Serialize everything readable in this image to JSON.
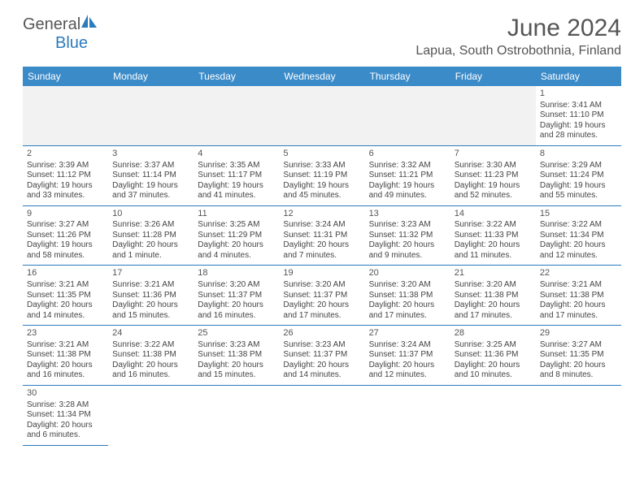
{
  "brand": {
    "name1": "General",
    "name2": "Blue",
    "color1": "#555555",
    "color2": "#2b7bbd"
  },
  "title": "June 2024",
  "location": "Lapua, South Ostrobothnia, Finland",
  "colors": {
    "header_bg": "#3b8bc9",
    "header_text": "#ffffff",
    "rule": "#2b7bbd",
    "empty_bg": "#f2f2f2",
    "text": "#444444"
  },
  "day_headers": [
    "Sunday",
    "Monday",
    "Tuesday",
    "Wednesday",
    "Thursday",
    "Friday",
    "Saturday"
  ],
  "weeks": [
    [
      null,
      null,
      null,
      null,
      null,
      null,
      {
        "n": "1",
        "sunrise": "Sunrise: 3:41 AM",
        "sunset": "Sunset: 11:10 PM",
        "daylight": "Daylight: 19 hours and 28 minutes."
      }
    ],
    [
      {
        "n": "2",
        "sunrise": "Sunrise: 3:39 AM",
        "sunset": "Sunset: 11:12 PM",
        "daylight": "Daylight: 19 hours and 33 minutes."
      },
      {
        "n": "3",
        "sunrise": "Sunrise: 3:37 AM",
        "sunset": "Sunset: 11:14 PM",
        "daylight": "Daylight: 19 hours and 37 minutes."
      },
      {
        "n": "4",
        "sunrise": "Sunrise: 3:35 AM",
        "sunset": "Sunset: 11:17 PM",
        "daylight": "Daylight: 19 hours and 41 minutes."
      },
      {
        "n": "5",
        "sunrise": "Sunrise: 3:33 AM",
        "sunset": "Sunset: 11:19 PM",
        "daylight": "Daylight: 19 hours and 45 minutes."
      },
      {
        "n": "6",
        "sunrise": "Sunrise: 3:32 AM",
        "sunset": "Sunset: 11:21 PM",
        "daylight": "Daylight: 19 hours and 49 minutes."
      },
      {
        "n": "7",
        "sunrise": "Sunrise: 3:30 AM",
        "sunset": "Sunset: 11:23 PM",
        "daylight": "Daylight: 19 hours and 52 minutes."
      },
      {
        "n": "8",
        "sunrise": "Sunrise: 3:29 AM",
        "sunset": "Sunset: 11:24 PM",
        "daylight": "Daylight: 19 hours and 55 minutes."
      }
    ],
    [
      {
        "n": "9",
        "sunrise": "Sunrise: 3:27 AM",
        "sunset": "Sunset: 11:26 PM",
        "daylight": "Daylight: 19 hours and 58 minutes."
      },
      {
        "n": "10",
        "sunrise": "Sunrise: 3:26 AM",
        "sunset": "Sunset: 11:28 PM",
        "daylight": "Daylight: 20 hours and 1 minute."
      },
      {
        "n": "11",
        "sunrise": "Sunrise: 3:25 AM",
        "sunset": "Sunset: 11:29 PM",
        "daylight": "Daylight: 20 hours and 4 minutes."
      },
      {
        "n": "12",
        "sunrise": "Sunrise: 3:24 AM",
        "sunset": "Sunset: 11:31 PM",
        "daylight": "Daylight: 20 hours and 7 minutes."
      },
      {
        "n": "13",
        "sunrise": "Sunrise: 3:23 AM",
        "sunset": "Sunset: 11:32 PM",
        "daylight": "Daylight: 20 hours and 9 minutes."
      },
      {
        "n": "14",
        "sunrise": "Sunrise: 3:22 AM",
        "sunset": "Sunset: 11:33 PM",
        "daylight": "Daylight: 20 hours and 11 minutes."
      },
      {
        "n": "15",
        "sunrise": "Sunrise: 3:22 AM",
        "sunset": "Sunset: 11:34 PM",
        "daylight": "Daylight: 20 hours and 12 minutes."
      }
    ],
    [
      {
        "n": "16",
        "sunrise": "Sunrise: 3:21 AM",
        "sunset": "Sunset: 11:35 PM",
        "daylight": "Daylight: 20 hours and 14 minutes."
      },
      {
        "n": "17",
        "sunrise": "Sunrise: 3:21 AM",
        "sunset": "Sunset: 11:36 PM",
        "daylight": "Daylight: 20 hours and 15 minutes."
      },
      {
        "n": "18",
        "sunrise": "Sunrise: 3:20 AM",
        "sunset": "Sunset: 11:37 PM",
        "daylight": "Daylight: 20 hours and 16 minutes."
      },
      {
        "n": "19",
        "sunrise": "Sunrise: 3:20 AM",
        "sunset": "Sunset: 11:37 PM",
        "daylight": "Daylight: 20 hours and 17 minutes."
      },
      {
        "n": "20",
        "sunrise": "Sunrise: 3:20 AM",
        "sunset": "Sunset: 11:38 PM",
        "daylight": "Daylight: 20 hours and 17 minutes."
      },
      {
        "n": "21",
        "sunrise": "Sunrise: 3:20 AM",
        "sunset": "Sunset: 11:38 PM",
        "daylight": "Daylight: 20 hours and 17 minutes."
      },
      {
        "n": "22",
        "sunrise": "Sunrise: 3:21 AM",
        "sunset": "Sunset: 11:38 PM",
        "daylight": "Daylight: 20 hours and 17 minutes."
      }
    ],
    [
      {
        "n": "23",
        "sunrise": "Sunrise: 3:21 AM",
        "sunset": "Sunset: 11:38 PM",
        "daylight": "Daylight: 20 hours and 16 minutes."
      },
      {
        "n": "24",
        "sunrise": "Sunrise: 3:22 AM",
        "sunset": "Sunset: 11:38 PM",
        "daylight": "Daylight: 20 hours and 16 minutes."
      },
      {
        "n": "25",
        "sunrise": "Sunrise: 3:23 AM",
        "sunset": "Sunset: 11:38 PM",
        "daylight": "Daylight: 20 hours and 15 minutes."
      },
      {
        "n": "26",
        "sunrise": "Sunrise: 3:23 AM",
        "sunset": "Sunset: 11:37 PM",
        "daylight": "Daylight: 20 hours and 14 minutes."
      },
      {
        "n": "27",
        "sunrise": "Sunrise: 3:24 AM",
        "sunset": "Sunset: 11:37 PM",
        "daylight": "Daylight: 20 hours and 12 minutes."
      },
      {
        "n": "28",
        "sunrise": "Sunrise: 3:25 AM",
        "sunset": "Sunset: 11:36 PM",
        "daylight": "Daylight: 20 hours and 10 minutes."
      },
      {
        "n": "29",
        "sunrise": "Sunrise: 3:27 AM",
        "sunset": "Sunset: 11:35 PM",
        "daylight": "Daylight: 20 hours and 8 minutes."
      }
    ],
    [
      {
        "n": "30",
        "sunrise": "Sunrise: 3:28 AM",
        "sunset": "Sunset: 11:34 PM",
        "daylight": "Daylight: 20 hours and 6 minutes."
      },
      null,
      null,
      null,
      null,
      null,
      null
    ]
  ]
}
